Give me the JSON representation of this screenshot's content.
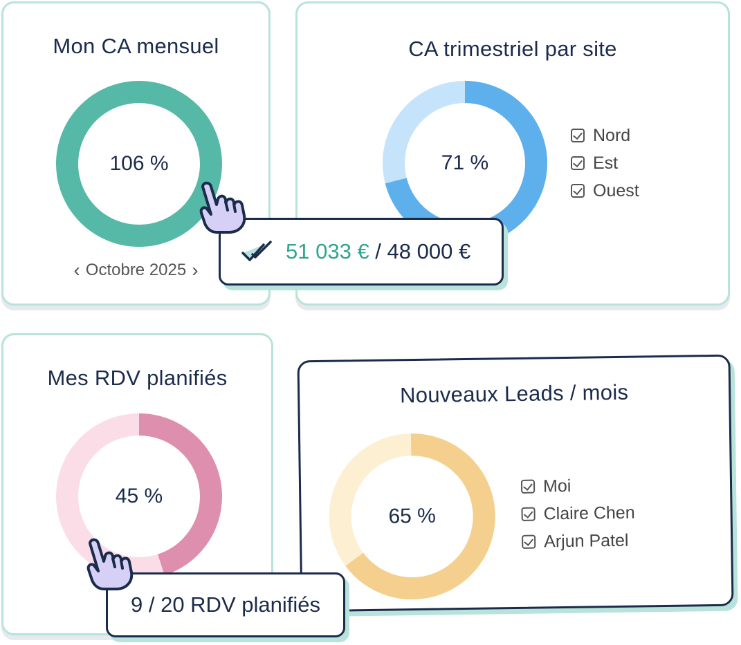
{
  "cards": {
    "monthly": {
      "title": "Mon CA mensuel",
      "percent_label": "106 %",
      "progress": 1.06,
      "color": "#56b8a6",
      "period": "Octobre 2025",
      "prev_icon": "chevron-left-icon",
      "next_icon": "chevron-right-icon"
    },
    "quarterly": {
      "title": "CA trimestriel par site",
      "percent_label": "71 %",
      "progress": 0.71,
      "color": "#5eb0ec",
      "track_color": "#c5e3fb",
      "legend": [
        "Nord",
        "Est",
        "Ouest"
      ]
    },
    "rdv": {
      "title": "Mes RDV planifiés",
      "percent_label": "45 %",
      "progress": 0.45,
      "color": "#de8fae",
      "track_color": "#fbdde8"
    },
    "leads": {
      "title": "Nouveaux Leads / mois",
      "percent_label": "65 %",
      "progress": 0.65,
      "color": "#f4cf8e",
      "track_color": "#fdefd2",
      "legend": [
        "Moi",
        "Claire Chen",
        "Arjun Patel"
      ]
    }
  },
  "tooltips": {
    "revenue": {
      "icon": "double-check-icon",
      "achieved": "51 033 €",
      "separator": " / ",
      "target": "48 000 €"
    },
    "rdv": {
      "text": "9 / 20 RDV planifiés"
    }
  },
  "icons": {
    "cursor": "pointer-hand-icon",
    "checkbox": "checkbox-checked-icon"
  }
}
